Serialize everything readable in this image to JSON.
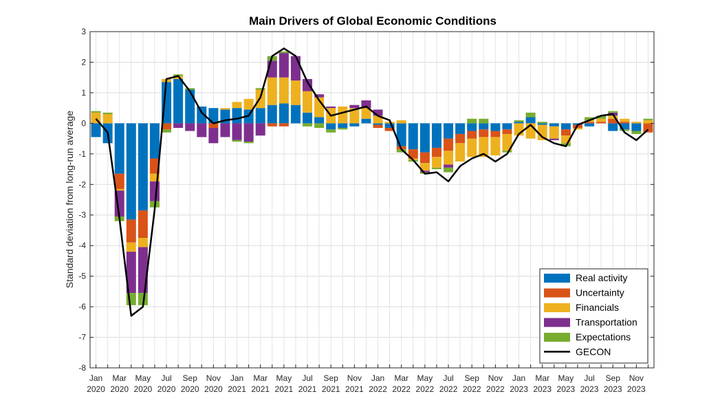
{
  "chart_data": {
    "type": "bar",
    "stacked": true,
    "title": "Main Drivers of Global Economic Conditions",
    "xlabel": "",
    "ylabel": "Standard deviation from long-run average",
    "ylim": [
      -8,
      3
    ],
    "yticks": [
      3,
      2,
      1,
      0,
      -1,
      -2,
      -3,
      -4,
      -5,
      -6,
      -7,
      -8
    ],
    "grid": true,
    "legend_position": "bottom-right",
    "x_tick_labels": [
      {
        "index": 0,
        "month": "Jan",
        "year": "2020"
      },
      {
        "index": 2,
        "month": "Mar",
        "year": "2020"
      },
      {
        "index": 4,
        "month": "May",
        "year": "2020"
      },
      {
        "index": 6,
        "month": "Jul",
        "year": "2020"
      },
      {
        "index": 8,
        "month": "Sep",
        "year": "2020"
      },
      {
        "index": 10,
        "month": "Nov",
        "year": "2020"
      },
      {
        "index": 12,
        "month": "Jan",
        "year": "2021"
      },
      {
        "index": 14,
        "month": "Mar",
        "year": "2021"
      },
      {
        "index": 16,
        "month": "May",
        "year": "2021"
      },
      {
        "index": 18,
        "month": "Jul",
        "year": "2021"
      },
      {
        "index": 20,
        "month": "Sep",
        "year": "2021"
      },
      {
        "index": 22,
        "month": "Nov",
        "year": "2021"
      },
      {
        "index": 24,
        "month": "Jan",
        "year": "2022"
      },
      {
        "index": 26,
        "month": "Mar",
        "year": "2022"
      },
      {
        "index": 28,
        "month": "May",
        "year": "2022"
      },
      {
        "index": 30,
        "month": "Jul",
        "year": "2022"
      },
      {
        "index": 32,
        "month": "Sep",
        "year": "2022"
      },
      {
        "index": 34,
        "month": "Nov",
        "year": "2022"
      },
      {
        "index": 36,
        "month": "Jan",
        "year": "2023"
      },
      {
        "index": 38,
        "month": "Mar",
        "year": "2023"
      },
      {
        "index": 40,
        "month": "May",
        "year": "2023"
      },
      {
        "index": 42,
        "month": "Jul",
        "year": "2023"
      },
      {
        "index": 44,
        "month": "Sep",
        "year": "2023"
      },
      {
        "index": 46,
        "month": "Nov",
        "year": "2023"
      }
    ],
    "x": [
      "Jan 2020",
      "Feb 2020",
      "Mar 2020",
      "Apr 2020",
      "May 2020",
      "Jun 2020",
      "Jul 2020",
      "Aug 2020",
      "Sep 2020",
      "Oct 2020",
      "Nov 2020",
      "Dec 2020",
      "Jan 2021",
      "Feb 2021",
      "Mar 2021",
      "Apr 2021",
      "May 2021",
      "Jun 2021",
      "Jul 2021",
      "Aug 2021",
      "Sep 2021",
      "Oct 2021",
      "Nov 2021",
      "Dec 2021",
      "Jan 2022",
      "Feb 2022",
      "Mar 2022",
      "Apr 2022",
      "May 2022",
      "Jun 2022",
      "Jul 2022",
      "Aug 2022",
      "Sep 2022",
      "Oct 2022",
      "Nov 2022",
      "Dec 2022",
      "Jan 2023",
      "Feb 2023",
      "Mar 2023",
      "Apr 2023",
      "May 2023",
      "Jun 2023",
      "Jul 2023",
      "Aug 2023",
      "Sep 2023",
      "Oct 2023",
      "Nov 2023",
      "Dec 2023"
    ],
    "series": [
      {
        "name": "Real activity",
        "color": "#0072BD",
        "values": [
          -0.45,
          -0.65,
          -1.65,
          -3.15,
          -2.85,
          -1.15,
          1.35,
          1.45,
          1.1,
          0.55,
          0.5,
          0.45,
          0.5,
          0.45,
          0.5,
          0.6,
          0.65,
          0.6,
          0.35,
          0.2,
          -0.2,
          -0.15,
          -0.1,
          0.15,
          -0.05,
          -0.15,
          -0.75,
          -0.85,
          -0.95,
          -0.8,
          -0.5,
          -0.35,
          -0.25,
          -0.2,
          -0.25,
          -0.2,
          0.05,
          0.2,
          -0.05,
          -0.1,
          -0.2,
          -0.05,
          -0.1,
          0.0,
          -0.25,
          -0.2,
          -0.25,
          0.0
        ]
      },
      {
        "name": "Uncertainty",
        "color": "#D95319",
        "values": [
          0.0,
          0.0,
          -0.5,
          -0.75,
          -0.9,
          -0.5,
          -0.2,
          0.0,
          0.0,
          0.0,
          -0.15,
          0.0,
          0.0,
          0.0,
          0.0,
          -0.1,
          -0.1,
          0.0,
          0.0,
          0.0,
          0.0,
          0.0,
          0.0,
          0.0,
          -0.1,
          -0.1,
          -0.1,
          -0.3,
          -0.35,
          -0.3,
          -0.4,
          -0.3,
          -0.25,
          -0.25,
          -0.2,
          -0.15,
          0.0,
          0.0,
          0.0,
          0.0,
          -0.2,
          -0.1,
          0.05,
          0.05,
          0.15,
          0.05,
          0.0,
          -0.3
        ]
      },
      {
        "name": "Financials",
        "color": "#EDB120",
        "values": [
          0.35,
          0.3,
          -0.05,
          -0.3,
          -0.3,
          -0.25,
          0.1,
          0.1,
          0.0,
          0.0,
          0.0,
          0.05,
          0.2,
          0.35,
          0.6,
          0.9,
          0.85,
          0.8,
          0.7,
          0.65,
          0.5,
          0.55,
          0.5,
          0.35,
          0.25,
          0.05,
          0.1,
          -0.05,
          -0.25,
          -0.35,
          -0.45,
          -0.6,
          -0.6,
          -0.65,
          -0.6,
          -0.55,
          -0.4,
          -0.5,
          -0.5,
          -0.4,
          -0.25,
          -0.05,
          0.05,
          0.1,
          0.1,
          0.1,
          0.05,
          0.1
        ]
      },
      {
        "name": "Transportation",
        "color": "#7E2F8E",
        "values": [
          0.0,
          0.0,
          -0.85,
          -1.35,
          -1.5,
          -0.65,
          0.0,
          -0.15,
          -0.25,
          -0.45,
          -0.5,
          -0.45,
          -0.55,
          -0.6,
          -0.4,
          0.55,
          0.8,
          0.8,
          0.4,
          0.1,
          0.05,
          0.0,
          0.1,
          0.25,
          0.2,
          0.0,
          0.0,
          0.0,
          -0.05,
          0.0,
          -0.1,
          0.0,
          0.0,
          0.0,
          0.0,
          0.0,
          0.0,
          0.0,
          0.0,
          -0.05,
          0.0,
          0.0,
          0.0,
          0.0,
          0.1,
          0.0,
          0.0,
          0.0
        ]
      },
      {
        "name": "Expectations",
        "color": "#77AC30",
        "values": [
          0.05,
          0.05,
          -0.15,
          -0.4,
          -0.4,
          -0.2,
          -0.1,
          0.05,
          0.05,
          0.0,
          0.0,
          0.0,
          -0.05,
          -0.05,
          0.05,
          0.15,
          0.05,
          0.0,
          -0.1,
          -0.15,
          -0.1,
          -0.05,
          0.0,
          0.0,
          0.0,
          0.0,
          -0.1,
          -0.05,
          -0.05,
          -0.05,
          -0.15,
          0.0,
          0.15,
          0.15,
          0.0,
          -0.05,
          0.05,
          0.15,
          0.05,
          0.0,
          -0.1,
          0.0,
          0.1,
          0.1,
          0.05,
          -0.05,
          -0.1,
          0.05
        ]
      }
    ],
    "line": {
      "name": "GECON",
      "color": "#000000",
      "values": [
        0.15,
        -0.3,
        -3.1,
        -6.3,
        -6.0,
        -2.8,
        1.45,
        1.55,
        1.05,
        0.35,
        0.0,
        0.1,
        0.15,
        0.25,
        0.85,
        2.2,
        2.45,
        2.2,
        1.35,
        0.75,
        0.25,
        0.35,
        0.45,
        0.55,
        0.25,
        0.1,
        -0.85,
        -1.2,
        -1.65,
        -1.6,
        -1.9,
        -1.4,
        -1.15,
        -1.0,
        -1.25,
        -1.0,
        -0.35,
        -0.05,
        -0.45,
        -0.65,
        -0.75,
        -0.05,
        0.1,
        0.25,
        0.3,
        -0.3,
        -0.55,
        -0.2
      ]
    }
  }
}
